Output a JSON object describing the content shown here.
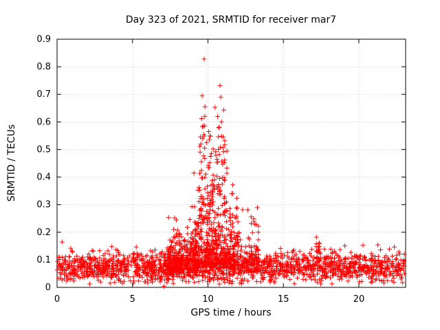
{
  "page": {
    "background": "#ffffff"
  },
  "chart_data": {
    "type": "scatter",
    "title": "Day 323 of 2021, SRMTID for receiver mar7",
    "xlabel": "GPS time / hours",
    "ylabel": "SRMTID / TECUs",
    "xlim": [
      0,
      23.1
    ],
    "ylim": [
      0,
      0.9
    ],
    "xticks": [
      0,
      5,
      10,
      15,
      20
    ],
    "yticks": [
      0,
      0.1,
      0.2,
      0.3,
      0.4,
      0.5,
      0.6,
      0.7,
      0.8,
      0.9
    ],
    "grid": true,
    "legend": "none",
    "marker": "+",
    "marker_color": "#ff0000",
    "axis_color": "#000000",
    "grid_color": "#c8c8c8",
    "seed": 97,
    "description": "Dense red plus-marker scatter: quiet baseline around 0.05-0.13 TECUs all day, broad TID peak between 8h and 13h GPS time with maxima up to 0.83, small secondary spike near 17.3h, one near-zero outlier at 7.1h.",
    "clusters": [
      {
        "name": "baseline-band",
        "n": 1700,
        "x": [
          0,
          23.05
        ],
        "dist": "gauss",
        "y_mean": 0.072,
        "y_sd": 0.028,
        "y_min": 0.012,
        "y_max": 0.175
      },
      {
        "name": "pre-peak-rise",
        "n": 260,
        "x": [
          7.3,
          9.3
        ],
        "dist": "halfgauss",
        "y_base": 0.055,
        "y_spread": 0.075,
        "y_min": 0.03,
        "y_max": 0.32
      },
      {
        "name": "peak-core",
        "n": 430,
        "x": [
          9.0,
          12.0
        ],
        "dist": "halfgauss",
        "y_base": 0.07,
        "y_spread": 0.11,
        "y_min": 0.04,
        "y_max": 0.48
      },
      {
        "name": "peak-upper",
        "n": 90,
        "x": [
          9.4,
          11.3
        ],
        "dist": "uniform",
        "y_base": 0.25,
        "y_max": 0.55
      },
      {
        "name": "peak-extreme",
        "n": 14,
        "x": [
          9.5,
          11.05
        ],
        "dist": "uniform",
        "y_base": 0.5,
        "y_max": 0.66
      },
      {
        "name": "post-peak-tail",
        "n": 95,
        "x": [
          12.0,
          13.35
        ],
        "dist": "halfgauss",
        "y_base": 0.055,
        "y_spread": 0.08,
        "y_min": 0.04,
        "y_max": 0.34
      },
      {
        "name": "spike-17h",
        "n": 20,
        "x": [
          17.15,
          17.42
        ],
        "dist": "uniform",
        "y_base": 0.09,
        "y_max": 0.185
      }
    ],
    "notable_points": [
      [
        9.75,
        0.828
      ],
      [
        10.8,
        0.732
      ],
      [
        9.62,
        0.695
      ],
      [
        10.85,
        0.69
      ],
      [
        9.8,
        0.655
      ],
      [
        9.58,
        0.612
      ],
      [
        10.9,
        0.6
      ],
      [
        9.7,
        0.585
      ],
      [
        10.05,
        0.565
      ],
      [
        9.9,
        0.525
      ],
      [
        10.7,
        0.5
      ],
      [
        7.08,
        0.004
      ]
    ]
  }
}
